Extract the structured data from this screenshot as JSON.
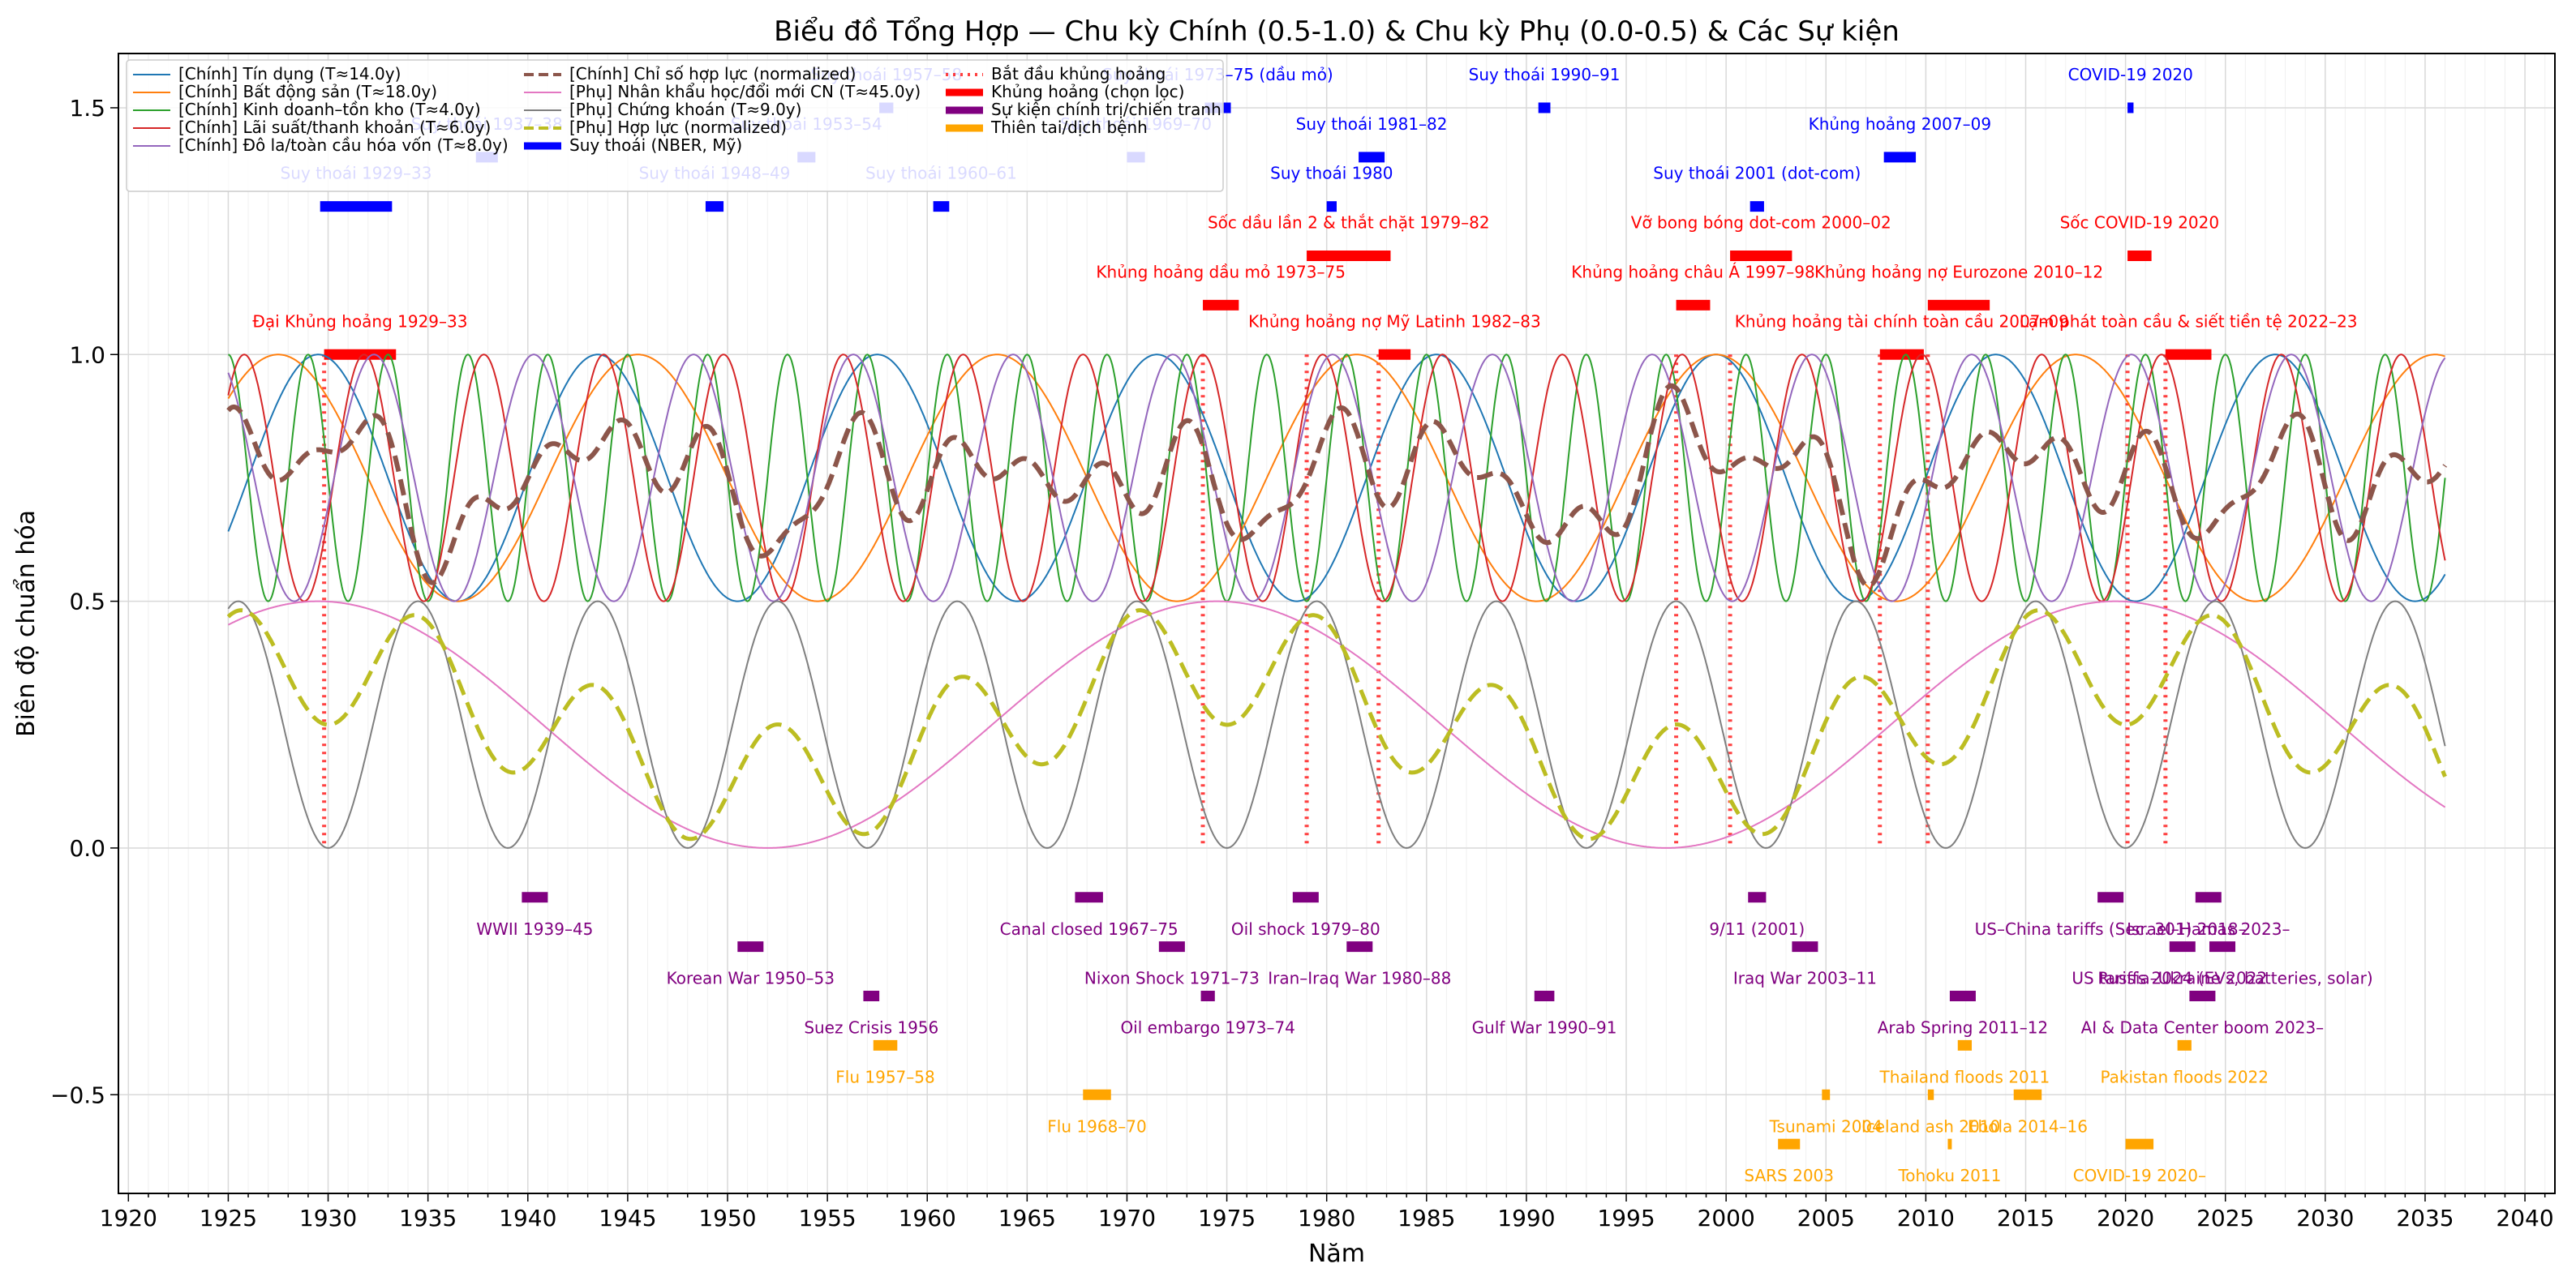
{
  "chart_data": {
    "type": "line",
    "title": "Biểu đồ Tổng Hợp — Chu kỳ Chính (0.5-1.0) & Chu kỳ Phụ (0.0-0.5) & Các Sự kiện",
    "xlabel": "Năm",
    "ylabel": "Biên độ chuẩn hóa",
    "xlim": [
      1919.5,
      2041.5
    ],
    "ylim": [
      -0.7,
      1.61
    ],
    "xticks": [
      1920,
      1925,
      1930,
      1935,
      1940,
      1945,
      1950,
      1955,
      1960,
      1965,
      1970,
      1975,
      1980,
      1985,
      1990,
      1995,
      2000,
      2005,
      2010,
      2015,
      2020,
      2025,
      2030,
      2035,
      2040
    ],
    "yticks": [
      -0.5,
      0.0,
      0.5,
      1.0,
      1.5
    ],
    "ytick_labels": [
      "−0.5",
      "0.0",
      "0.5",
      "1.0",
      "1.5"
    ],
    "grid": true,
    "legend_position": "upper-left",
    "x_range": [
      1925,
      2036
    ],
    "series": [
      {
        "name": "[Chính] Tín dụng (T≈14.0y)",
        "color": "#1f77b4",
        "width": 2,
        "kind": "cos",
        "period": 14,
        "phase_year": 1929.5,
        "mid": 0.75,
        "amp": 0.25
      },
      {
        "name": "[Chính] Bất động sản (T≈18.0y)",
        "color": "#ff7f0e",
        "width": 2,
        "kind": "cos",
        "period": 18,
        "phase_year": 1927.5,
        "mid": 0.75,
        "amp": 0.25
      },
      {
        "name": "[Chính] Kinh doanh–tồn kho (T≈4.0y)",
        "color": "#2ca02c",
        "width": 2,
        "kind": "cos",
        "period": 4,
        "phase_year": 1925.0,
        "mid": 0.75,
        "amp": 0.25
      },
      {
        "name": "[Chính] Lãi suất/thanh khoản (T≈6.0y)",
        "color": "#d62728",
        "width": 2,
        "kind": "cos",
        "period": 6,
        "phase_year": 1925.8,
        "mid": 0.75,
        "amp": 0.25
      },
      {
        "name": "[Chính] Đô la/toàn cầu hóa vốn (T≈8.0y)",
        "color": "#9467bd",
        "width": 2,
        "kind": "cos",
        "period": 8,
        "phase_year": 1924.3,
        "mid": 0.75,
        "amp": 0.25
      },
      {
        "name": "[Chính] Chỉ số hợp lực (normalized)",
        "color": "#8c564b",
        "width": 6,
        "dash": "20,10",
        "kind": "composite",
        "members": [
          0,
          1,
          2,
          3,
          4
        ]
      },
      {
        "name": "[Phụ] Nhân khẩu học/đổi mới CN (T≈45.0y)",
        "color": "#e377c2",
        "width": 2,
        "kind": "cos",
        "period": 45,
        "phase_year": 1929.5,
        "mid": 0.25,
        "amp": 0.25
      },
      {
        "name": "[Phụ] Chứng khoán (T≈9.0y)",
        "color": "#7f7f7f",
        "width": 2,
        "kind": "cos",
        "period": 9,
        "phase_year": 1934.5,
        "mid": 0.25,
        "amp": 0.25
      },
      {
        "name": "[Phụ] Hợp lực (normalized)",
        "color": "#bcbd22",
        "width": 5,
        "dash": "20,10",
        "kind": "composite",
        "members": [
          6,
          7
        ]
      }
    ],
    "legend": [
      {
        "label": "[Chính] Tín dụng (T≈14.0y)",
        "color": "#1f77b4",
        "style": "line"
      },
      {
        "label": "[Chính] Bất động sản (T≈18.0y)",
        "color": "#ff7f0e",
        "style": "line"
      },
      {
        "label": "[Chính] Kinh doanh–tồn kho (T≈4.0y)",
        "color": "#2ca02c",
        "style": "line"
      },
      {
        "label": "[Chính] Lãi suất/thanh khoản (T≈6.0y)",
        "color": "#d62728",
        "style": "line"
      },
      {
        "label": "[Chính] Đô la/toàn cầu hóa vốn (T≈8.0y)",
        "color": "#9467bd",
        "style": "line"
      },
      {
        "label": "[Chính] Chỉ số hợp lực (normalized)",
        "color": "#8c564b",
        "style": "dashed"
      },
      {
        "label": "[Phụ] Nhân khẩu học/đổi mới CN (T≈45.0y)",
        "color": "#e377c2",
        "style": "line"
      },
      {
        "label": "[Phụ] Chứng khoán (T≈9.0y)",
        "color": "#7f7f7f",
        "style": "line"
      },
      {
        "label": "[Phụ] Hợp lực (normalized)",
        "color": "#bcbd22",
        "style": "dashed"
      },
      {
        "label": "Suy thoái (NBER, Mỹ)",
        "color": "#0000ff",
        "style": "bar"
      },
      {
        "label": "Bắt đầu khủng hoảng",
        "color": "#ff0000",
        "style": "dotted"
      },
      {
        "label": "Khủng hoảng (chọn lọc)",
        "color": "#ff0000",
        "style": "bar"
      },
      {
        "label": "Sự kiện chính trị/chiến tranh",
        "color": "#800080",
        "style": "bar"
      },
      {
        "label": "Thiên tai/dịch bệnh",
        "color": "#ffa500",
        "style": "bar"
      }
    ],
    "recessions": [
      {
        "label": "Suy thoái 1929–33",
        "start": 1929.6,
        "end": 1933.2,
        "y": 1.3
      },
      {
        "label": "Suy thoái 1937–38",
        "start": 1937.4,
        "end": 1938.5,
        "y": 1.4
      },
      {
        "label": "Suy thoái 1948–49",
        "start": 1948.9,
        "end": 1949.8,
        "y": 1.3
      },
      {
        "label": "Suy thoái 1953–54",
        "start": 1953.5,
        "end": 1954.4,
        "y": 1.4
      },
      {
        "label": "Suy thoái 1957–58",
        "start": 1957.6,
        "end": 1958.3,
        "y": 1.5
      },
      {
        "label": "Suy thoái 1960–61",
        "start": 1960.3,
        "end": 1961.1,
        "y": 1.3
      },
      {
        "label": "Suy thoái 1969–70",
        "start": 1970.0,
        "end": 1970.9,
        "y": 1.4
      },
      {
        "label": "Suy thoái 1973–75 (dầu mỏ)",
        "start": 1973.9,
        "end": 1975.2,
        "y": 1.5
      },
      {
        "label": "Suy thoái 1980",
        "start": 1980.0,
        "end": 1980.5,
        "y": 1.3
      },
      {
        "label": "Suy thoái 1981–82",
        "start": 1981.6,
        "end": 1982.9,
        "y": 1.4
      },
      {
        "label": "Suy thoái 1990–91",
        "start": 1990.6,
        "end": 1991.2,
        "y": 1.5
      },
      {
        "label": "Suy thoái 2001 (dot-com)",
        "start": 2001.2,
        "end": 2001.9,
        "y": 1.3
      },
      {
        "label": "Khủng hoảng 2007–09",
        "start": 2007.9,
        "end": 2009.5,
        "y": 1.4
      },
      {
        "label": "COVID-19 2020",
        "start": 2020.1,
        "end": 2020.4,
        "y": 1.5
      }
    ],
    "crises": [
      {
        "label": "Đại Khủng hoảng 1929–33",
        "start": 1929.8,
        "end": 1933.4,
        "y": 1.0
      },
      {
        "label": "Khủng hoảng dầu mỏ 1973–75",
        "start": 1973.8,
        "end": 1975.6,
        "y": 1.1
      },
      {
        "label": "Sốc dầu lần 2 & thắt chặt 1979–82",
        "start": 1979.0,
        "end": 1983.2,
        "y": 1.2
      },
      {
        "label": "Khủng hoảng nợ Mỹ Latinh 1982–83",
        "start": 1982.6,
        "end": 1984.2,
        "y": 1.0
      },
      {
        "label": "Khủng hoảng châu Á 1997–98",
        "start": 1997.5,
        "end": 1999.2,
        "y": 1.1
      },
      {
        "label": "Vỡ bong bóng dot-com 2000–02",
        "start": 2000.2,
        "end": 2003.3,
        "y": 1.2
      },
      {
        "label": "Khủng hoảng tài chính toàn cầu 2007–09",
        "start": 2007.7,
        "end": 2009.9,
        "y": 1.0
      },
      {
        "label": "Khủng hoảng nợ Eurozone 2010–12",
        "start": 2010.1,
        "end": 2013.2,
        "y": 1.1
      },
      {
        "label": "Sốc COVID-19 2020",
        "start": 2020.1,
        "end": 2021.3,
        "y": 1.2
      },
      {
        "label": "Lạm phát toàn cầu & siết tiền tệ 2022–23",
        "start": 2022.0,
        "end": 2024.3,
        "y": 1.0
      }
    ],
    "political_events": [
      {
        "label": "WWII 1939–45",
        "start": 1939.7,
        "end": 1941.0,
        "y": -0.1
      },
      {
        "label": "Korean War 1950–53",
        "start": 1950.5,
        "end": 1951.8,
        "y": -0.2
      },
      {
        "label": "Suez Crisis 1956",
        "start": 1956.8,
        "end": 1957.6,
        "y": -0.3
      },
      {
        "label": "Canal closed 1967–75",
        "start": 1967.4,
        "end": 1968.8,
        "y": -0.1
      },
      {
        "label": "Nixon Shock 1971–73",
        "start": 1971.6,
        "end": 1972.9,
        "y": -0.2
      },
      {
        "label": "Oil embargo 1973–74",
        "start": 1973.7,
        "end": 1974.4,
        "y": -0.3
      },
      {
        "label": "Oil shock 1979–80",
        "start": 1978.3,
        "end": 1979.6,
        "y": -0.1
      },
      {
        "label": "Iran–Iraq War 1980–88",
        "start": 1981.0,
        "end": 1982.3,
        "y": -0.2
      },
      {
        "label": "Gulf War 1990–91",
        "start": 1990.4,
        "end": 1991.4,
        "y": -0.3
      },
      {
        "label": "9/11 (2001)",
        "start": 2001.1,
        "end": 2002.0,
        "y": -0.1
      },
      {
        "label": "Iraq War 2003–11",
        "start": 2003.3,
        "end": 2004.6,
        "y": -0.2
      },
      {
        "label": "Arab Spring 2011–12",
        "start": 2011.2,
        "end": 2012.5,
        "y": -0.3
      },
      {
        "label": "US–China tariffs (Sec. 301) 2018–",
        "start": 2018.6,
        "end": 2019.9,
        "y": -0.1
      },
      {
        "label": "Israel–Hamas 2023–",
        "start": 2023.5,
        "end": 2024.8,
        "y": -0.1
      },
      {
        "label": "Russia–Ukraine 2022",
        "start": 2022.2,
        "end": 2023.5,
        "y": -0.2
      },
      {
        "label": "US tariffs 2024 (EVs, batteries, solar)",
        "start": 2024.2,
        "end": 2025.5,
        "y": -0.2
      },
      {
        "label": "AI & Data Center boom 2023–",
        "start": 2023.2,
        "end": 2024.5,
        "y": -0.3
      }
    ],
    "disasters": [
      {
        "label": "Flu 1957–58",
        "start": 1957.3,
        "end": 1958.5,
        "y": -0.4
      },
      {
        "label": "Flu 1968–70",
        "start": 1967.8,
        "end": 1969.2,
        "y": -0.5
      },
      {
        "label": "SARS 2003",
        "start": 2002.6,
        "end": 2003.7,
        "y": -0.6
      },
      {
        "label": "Tsunami 2004",
        "start": 2004.8,
        "end": 2005.2,
        "y": -0.5
      },
      {
        "label": "Iceland ash 2010",
        "start": 2010.1,
        "end": 2010.4,
        "y": -0.5
      },
      {
        "label": "Thailand floods 2011",
        "start": 2011.6,
        "end": 2012.3,
        "y": -0.4
      },
      {
        "label": "Tohoku 2011",
        "start": 2011.1,
        "end": 2011.3,
        "y": -0.6
      },
      {
        "label": "Ebola 2014–16",
        "start": 2014.4,
        "end": 2015.8,
        "y": -0.5
      },
      {
        "label": "Pakistan floods 2022",
        "start": 2022.6,
        "end": 2023.3,
        "y": -0.4
      },
      {
        "label": "COVID-19 2020–",
        "start": 2020.0,
        "end": 2021.4,
        "y": -0.6
      }
    ],
    "crisis_start_lines": [
      1929.8,
      1973.8,
      1979.0,
      1982.6,
      1997.5,
      2000.2,
      2007.7,
      2010.1,
      2020.1,
      2022.0
    ],
    "colors": {
      "recession": "#0000ff",
      "crisis": "#ff0000",
      "political": "#800080",
      "disaster": "#ffa500"
    }
  }
}
